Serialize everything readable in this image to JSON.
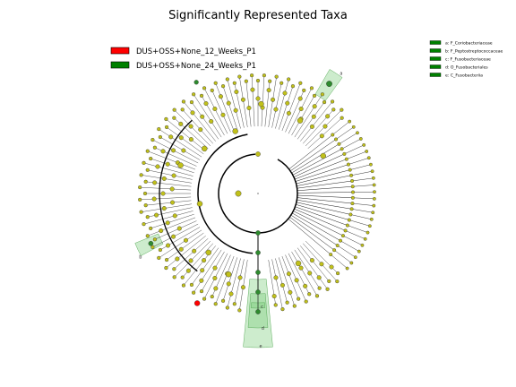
{
  "chart_data": {
    "type": "cladogram",
    "title": "Significantly Represented Taxa",
    "groups": [
      {
        "name": "DUS+OSS+None_12_Weeks_P1",
        "color": "#ff0000"
      },
      {
        "name": "DUS+OSS+None_24_Weeks_P1",
        "color": "#008000"
      }
    ],
    "node_color_default": "#c0c01a",
    "highlight_color": "#2e8b2e",
    "taxa_legend": [
      {
        "letter": "a",
        "label": "a: F_Coriobacteriaceae",
        "color": "#008000"
      },
      {
        "letter": "b",
        "label": "b: F_Peptostreptococcaceae",
        "color": "#008000"
      },
      {
        "letter": "c",
        "label": "c: F_Fusobacteriaceae",
        "color": "#008000"
      },
      {
        "letter": "d",
        "label": "d: O_Fusobacteriales",
        "color": "#008000"
      },
      {
        "letter": "e",
        "label": "e: C_Fusobacteriia",
        "color": "#008000"
      }
    ],
    "clade_labels": [
      "a",
      "b",
      "c",
      "d",
      "e"
    ]
  }
}
